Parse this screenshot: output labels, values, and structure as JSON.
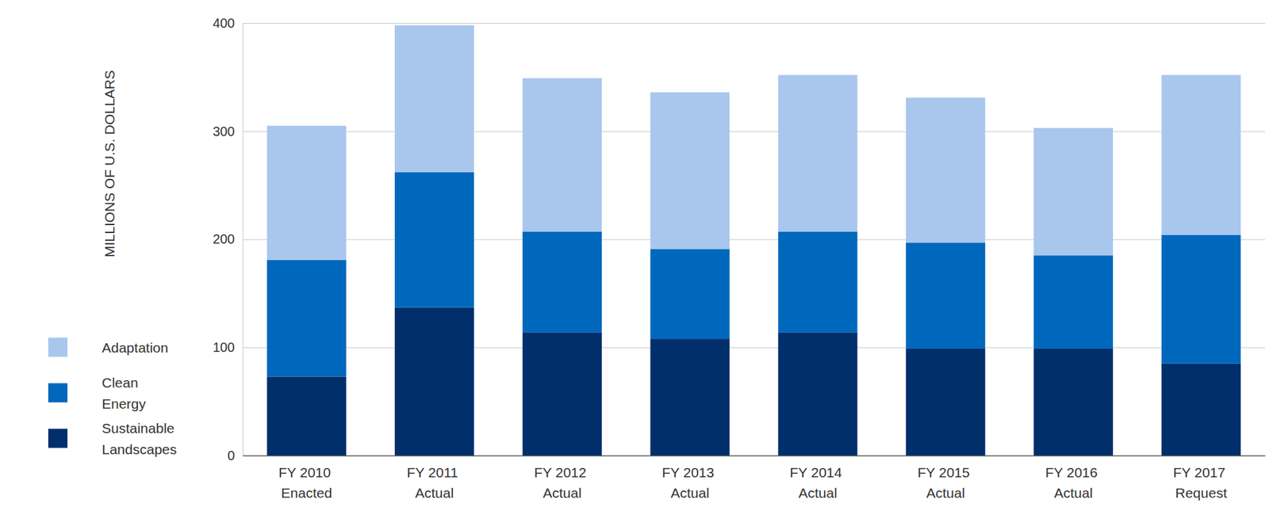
{
  "chart_data": {
    "type": "bar",
    "stacked": true,
    "grid": true,
    "legend": "left",
    "y_label": "MILLIONS OF U.S. DOLLARS",
    "categories": [
      "FY 2010 Enacted",
      "FY 2011 Actual",
      "FY 2012 Actual",
      "FY 2013 Actual",
      "FY 2014 Actual",
      "FY 2015 Actual",
      "FY 2016 Actual",
      "FY 2017 Request"
    ],
    "series": [
      {
        "name": "Sustainable Landscapes",
        "color": "#002f6c",
        "values": [
          73,
          137,
          114,
          108,
          114,
          99,
          99,
          85
        ]
      },
      {
        "name": "Clean Energy",
        "color": "#0068bc",
        "values": [
          108,
          125,
          93,
          83,
          93,
          98,
          86,
          119
        ]
      },
      {
        "name": "Adaptation",
        "color": "#a9c6ed",
        "values": [
          124,
          136,
          142,
          145,
          145,
          134,
          118,
          148
        ]
      }
    ],
    "ylim": [
      0,
      400
    ],
    "yticks": [
      0,
      100,
      200,
      300,
      400
    ]
  }
}
